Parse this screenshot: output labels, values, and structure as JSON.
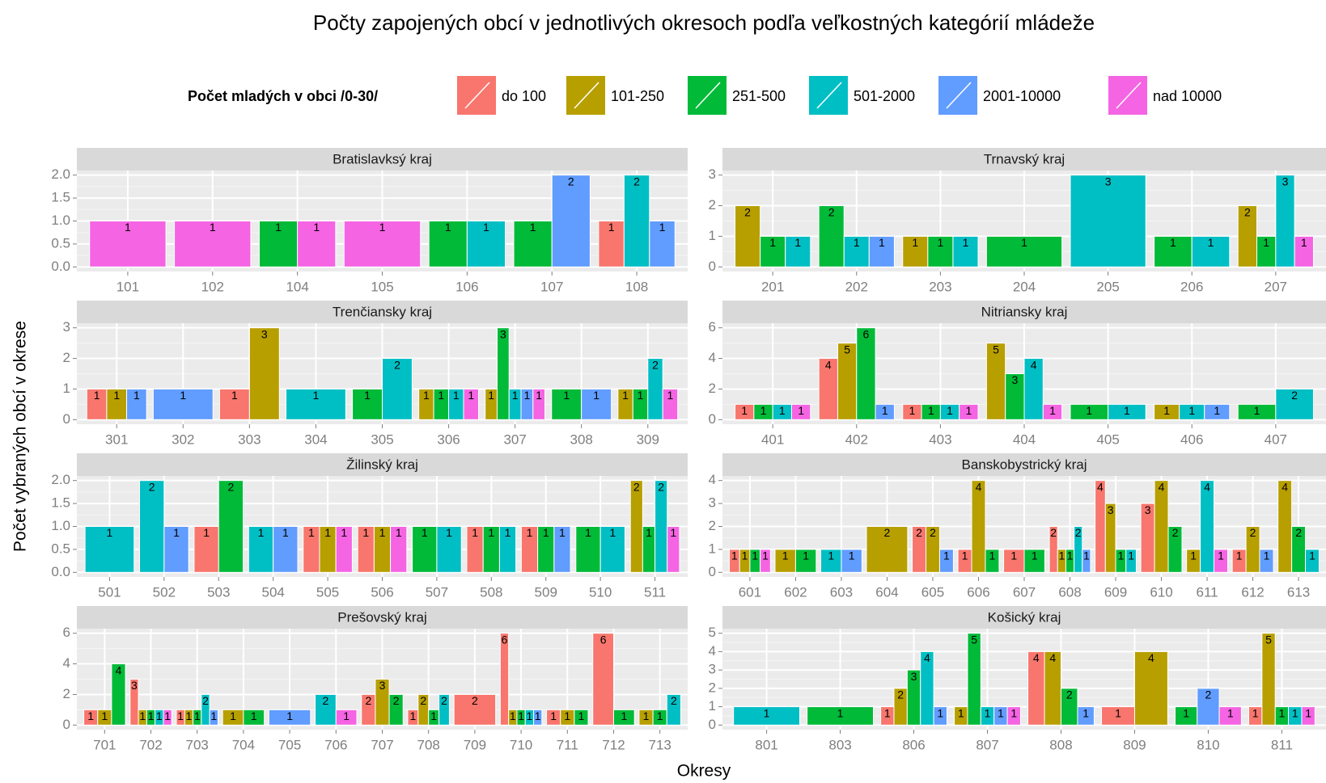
{
  "title": "Počty zapojených obcí v jednotlivých okresoch podľa veľkostných kategórií mládeže",
  "x_label": "Okresy",
  "y_label": "Počet vybraných obcí v okrese",
  "legend_title": "Počet mladých v obci /0-30/",
  "chart_data": [
    {
      "type": "bar",
      "title": "Bratislavksý kraj",
      "categories": [
        "101",
        "102",
        "104",
        "105",
        "106",
        "107",
        "108"
      ],
      "series": [
        {
          "name": "do 100",
          "color": "#F8766D",
          "values": [
            null,
            null,
            null,
            null,
            null,
            null,
            1
          ]
        },
        {
          "name": "101-250",
          "color": "#B79F00",
          "values": [
            null,
            null,
            null,
            null,
            null,
            null,
            null
          ]
        },
        {
          "name": "251-500",
          "color": "#00BA38",
          "values": [
            null,
            null,
            1,
            null,
            1,
            1,
            null
          ]
        },
        {
          "name": "501-2000",
          "color": "#00BFC4",
          "values": [
            null,
            null,
            null,
            null,
            1,
            null,
            2
          ]
        },
        {
          "name": "2001-10000",
          "color": "#619CFF",
          "values": [
            null,
            null,
            null,
            null,
            null,
            2,
            1
          ]
        },
        {
          "name": "nad 10000",
          "color": "#F564E3",
          "values": [
            1,
            1,
            1,
            1,
            null,
            null,
            null
          ]
        }
      ],
      "ylim": [
        -0.1,
        2.1
      ],
      "yticks": [
        {
          "value": 0,
          "label": "0.0"
        },
        {
          "value": 0.5,
          "label": "0.5"
        },
        {
          "value": 1,
          "label": "1.0"
        },
        {
          "value": 1.5,
          "label": "1.5"
        },
        {
          "value": 2,
          "label": "2.0"
        }
      ],
      "grid": true
    },
    {
      "type": "bar",
      "title": "Trnavský kraj",
      "categories": [
        "201",
        "202",
        "203",
        "204",
        "205",
        "206",
        "207"
      ],
      "series": [
        {
          "name": "do 100",
          "color": "#F8766D",
          "values": [
            null,
            null,
            null,
            null,
            null,
            null,
            null
          ]
        },
        {
          "name": "101-250",
          "color": "#B79F00",
          "values": [
            2,
            null,
            1,
            null,
            null,
            null,
            2
          ]
        },
        {
          "name": "251-500",
          "color": "#00BA38",
          "values": [
            1,
            2,
            1,
            1,
            null,
            1,
            1
          ]
        },
        {
          "name": "501-2000",
          "color": "#00BFC4",
          "values": [
            1,
            1,
            1,
            null,
            3,
            1,
            3
          ]
        },
        {
          "name": "2001-10000",
          "color": "#619CFF",
          "values": [
            null,
            1,
            null,
            null,
            null,
            null,
            null
          ]
        },
        {
          "name": "nad 10000",
          "color": "#F564E3",
          "values": [
            null,
            null,
            null,
            null,
            null,
            null,
            1
          ]
        }
      ],
      "ylim": [
        -0.15,
        3.15
      ],
      "yticks": [
        0,
        1,
        2,
        3
      ],
      "grid": true
    },
    {
      "type": "bar",
      "title": "Trenčiansky kraj",
      "categories": [
        "301",
        "302",
        "303",
        "304",
        "305",
        "306",
        "307",
        "308",
        "309"
      ],
      "series": [
        {
          "name": "do 100",
          "color": "#F8766D",
          "values": [
            1,
            null,
            1,
            null,
            null,
            null,
            null,
            null,
            null
          ]
        },
        {
          "name": "101-250",
          "color": "#B79F00",
          "values": [
            1,
            null,
            3,
            null,
            null,
            1,
            1,
            null,
            1
          ]
        },
        {
          "name": "251-500",
          "color": "#00BA38",
          "values": [
            null,
            null,
            null,
            null,
            1,
            1,
            3,
            1,
            1
          ]
        },
        {
          "name": "501-2000",
          "color": "#00BFC4",
          "values": [
            null,
            null,
            null,
            1,
            2,
            1,
            1,
            null,
            2
          ]
        },
        {
          "name": "2001-10000",
          "color": "#619CFF",
          "values": [
            1,
            1,
            null,
            null,
            null,
            null,
            1,
            1,
            null
          ]
        },
        {
          "name": "nad 10000",
          "color": "#F564E3",
          "values": [
            null,
            null,
            null,
            null,
            null,
            1,
            1,
            null,
            1
          ]
        }
      ],
      "ylim": [
        -0.15,
        3.15
      ],
      "yticks": [
        0,
        1,
        2,
        3
      ],
      "grid": true
    },
    {
      "type": "bar",
      "title": "Nitriansky kraj",
      "categories": [
        "401",
        "402",
        "403",
        "404",
        "405",
        "406",
        "407"
      ],
      "series": [
        {
          "name": "do 100",
          "color": "#F8766D",
          "values": [
            1,
            4,
            1,
            null,
            null,
            null,
            null
          ]
        },
        {
          "name": "101-250",
          "color": "#B79F00",
          "values": [
            null,
            5,
            null,
            5,
            null,
            1,
            null
          ]
        },
        {
          "name": "251-500",
          "color": "#00BA38",
          "values": [
            1,
            6,
            1,
            3,
            1,
            null,
            1
          ]
        },
        {
          "name": "501-2000",
          "color": "#00BFC4",
          "values": [
            1,
            null,
            1,
            4,
            1,
            1,
            2
          ]
        },
        {
          "name": "2001-10000",
          "color": "#619CFF",
          "values": [
            null,
            1,
            null,
            null,
            null,
            1,
            null
          ]
        },
        {
          "name": "nad 10000",
          "color": "#F564E3",
          "values": [
            1,
            null,
            1,
            1,
            null,
            null,
            null
          ]
        }
      ],
      "ylim": [
        -0.3,
        6.3
      ],
      "yticks": [
        0,
        2,
        4,
        6
      ],
      "grid": true
    },
    {
      "type": "bar",
      "title": "Žilinský kraj",
      "categories": [
        "501",
        "502",
        "503",
        "504",
        "505",
        "506",
        "507",
        "508",
        "509",
        "510",
        "511"
      ],
      "series": [
        {
          "name": "do 100",
          "color": "#F8766D",
          "values": [
            null,
            null,
            1,
            null,
            1,
            1,
            null,
            1,
            1,
            null,
            null
          ]
        },
        {
          "name": "101-250",
          "color": "#B79F00",
          "values": [
            null,
            null,
            null,
            null,
            1,
            1,
            null,
            null,
            null,
            null,
            2
          ]
        },
        {
          "name": "251-500",
          "color": "#00BA38",
          "values": [
            null,
            null,
            2,
            null,
            null,
            null,
            1,
            1,
            1,
            1,
            1
          ]
        },
        {
          "name": "501-2000",
          "color": "#00BFC4",
          "values": [
            1,
            2,
            null,
            1,
            null,
            null,
            1,
            1,
            null,
            1,
            2
          ]
        },
        {
          "name": "2001-10000",
          "color": "#619CFF",
          "values": [
            null,
            1,
            null,
            1,
            null,
            null,
            null,
            null,
            1,
            null,
            null
          ]
        },
        {
          "name": "nad 10000",
          "color": "#F564E3",
          "values": [
            null,
            null,
            null,
            null,
            1,
            1,
            null,
            null,
            null,
            null,
            1
          ]
        }
      ],
      "ylim": [
        -0.1,
        2.1
      ],
      "yticks": [
        {
          "value": 0,
          "label": "0.0"
        },
        {
          "value": 0.5,
          "label": "0.5"
        },
        {
          "value": 1,
          "label": "1.0"
        },
        {
          "value": 1.5,
          "label": "1.5"
        },
        {
          "value": 2,
          "label": "2.0"
        }
      ],
      "grid": true
    },
    {
      "type": "bar",
      "title": "Banskobystrický kraj",
      "categories": [
        "601",
        "602",
        "603",
        "604",
        "605",
        "606",
        "607",
        "608",
        "609",
        "610",
        "611",
        "612",
        "613"
      ],
      "series": [
        {
          "name": "do 100",
          "color": "#F8766D",
          "values": [
            1,
            null,
            null,
            null,
            2,
            1,
            1,
            2,
            4,
            3,
            null,
            1,
            null
          ]
        },
        {
          "name": "101-250",
          "color": "#B79F00",
          "values": [
            1,
            1,
            null,
            2,
            2,
            4,
            null,
            1,
            3,
            4,
            1,
            2,
            4
          ]
        },
        {
          "name": "251-500",
          "color": "#00BA38",
          "values": [
            1,
            1,
            null,
            null,
            null,
            1,
            1,
            1,
            1,
            2,
            null,
            null,
            2
          ]
        },
        {
          "name": "501-2000",
          "color": "#00BFC4",
          "values": [
            null,
            null,
            1,
            null,
            null,
            null,
            null,
            2,
            1,
            null,
            4,
            null,
            1
          ]
        },
        {
          "name": "2001-10000",
          "color": "#619CFF",
          "values": [
            null,
            null,
            1,
            null,
            1,
            null,
            null,
            1,
            null,
            null,
            null,
            1,
            null
          ]
        },
        {
          "name": "nad 10000",
          "color": "#F564E3",
          "values": [
            1,
            null,
            null,
            null,
            null,
            null,
            null,
            null,
            null,
            null,
            1,
            null,
            null
          ]
        }
      ],
      "ylim": [
        -0.2,
        4.2
      ],
      "yticks": [
        0,
        1,
        2,
        3,
        4
      ],
      "grid": true
    },
    {
      "type": "bar",
      "title": "Prešovský kraj",
      "categories": [
        "701",
        "702",
        "703",
        "704",
        "705",
        "706",
        "707",
        "708",
        "709",
        "710",
        "711",
        "712",
        "713"
      ],
      "series": [
        {
          "name": "do 100",
          "color": "#F8766D",
          "values": [
            1,
            3,
            1,
            null,
            null,
            null,
            2,
            1,
            2,
            6,
            1,
            6,
            null
          ]
        },
        {
          "name": "101-250",
          "color": "#B79F00",
          "values": [
            1,
            1,
            1,
            1,
            null,
            null,
            3,
            2,
            null,
            1,
            1,
            null,
            1
          ]
        },
        {
          "name": "251-500",
          "color": "#00BA38",
          "values": [
            4,
            1,
            1,
            1,
            null,
            null,
            2,
            1,
            null,
            1,
            1,
            1,
            1
          ]
        },
        {
          "name": "501-2000",
          "color": "#00BFC4",
          "values": [
            null,
            1,
            2,
            null,
            null,
            2,
            null,
            2,
            null,
            1,
            null,
            null,
            2
          ]
        },
        {
          "name": "2001-10000",
          "color": "#619CFF",
          "values": [
            null,
            null,
            1,
            null,
            1,
            null,
            null,
            null,
            null,
            1,
            null,
            null,
            null
          ]
        },
        {
          "name": "nad 10000",
          "color": "#F564E3",
          "values": [
            null,
            1,
            null,
            null,
            null,
            1,
            null,
            null,
            null,
            null,
            null,
            null,
            null
          ]
        }
      ],
      "ylim": [
        -0.3,
        6.3
      ],
      "yticks": [
        0,
        2,
        4,
        6
      ],
      "grid": true
    },
    {
      "type": "bar",
      "title": "Košický kraj",
      "categories": [
        "801",
        "803",
        "806",
        "807",
        "808",
        "809",
        "810",
        "811"
      ],
      "series": [
        {
          "name": "do 100",
          "color": "#F8766D",
          "values": [
            null,
            null,
            1,
            null,
            4,
            1,
            null,
            1
          ]
        },
        {
          "name": "101-250",
          "color": "#B79F00",
          "values": [
            null,
            null,
            2,
            1,
            4,
            4,
            null,
            5
          ]
        },
        {
          "name": "251-500",
          "color": "#00BA38",
          "values": [
            null,
            1,
            3,
            5,
            2,
            null,
            1,
            1
          ]
        },
        {
          "name": "501-2000",
          "color": "#00BFC4",
          "values": [
            1,
            null,
            4,
            1,
            null,
            null,
            null,
            1
          ]
        },
        {
          "name": "2001-10000",
          "color": "#619CFF",
          "values": [
            null,
            null,
            1,
            1,
            1,
            null,
            2,
            null
          ]
        },
        {
          "name": "nad 10000",
          "color": "#F564E3",
          "values": [
            null,
            null,
            null,
            1,
            null,
            null,
            1,
            1
          ]
        }
      ],
      "ylim": [
        -0.25,
        5.25
      ],
      "yticks": [
        0,
        1,
        2,
        3,
        4,
        5
      ],
      "grid": true
    }
  ]
}
